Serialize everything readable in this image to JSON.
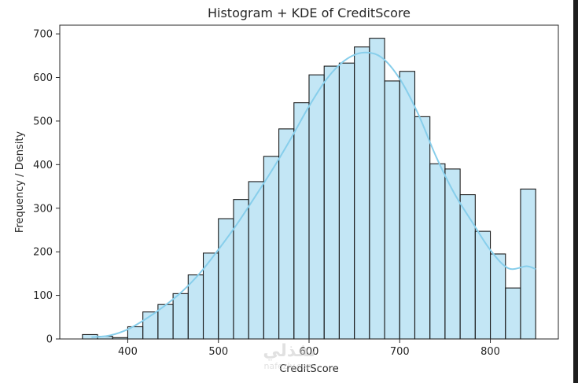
{
  "chart_data": {
    "type": "bar",
    "title": "Histogram + KDE of CreditScore",
    "xlabel": "CreditScore",
    "ylabel": "Frequency / Density",
    "xlim": [
      325,
      875
    ],
    "ylim": [
      0,
      720
    ],
    "xticks": [
      400,
      500,
      600,
      700,
      800
    ],
    "yticks": [
      0,
      100,
      200,
      300,
      400,
      500,
      600,
      700
    ],
    "bin_edges": [
      350,
      366.67,
      383.33,
      400,
      416.67,
      433.33,
      450,
      466.67,
      483.33,
      500,
      516.67,
      533.33,
      550,
      566.67,
      583.33,
      600,
      616.67,
      633.33,
      650,
      666.67,
      683.33,
      700,
      716.67,
      733.33,
      750,
      766.67,
      783.33,
      800,
      816.67,
      833.33,
      850
    ],
    "values": [
      10,
      6,
      3,
      28,
      62,
      79,
      104,
      147,
      197,
      276,
      320,
      361,
      419,
      482,
      542,
      606,
      626,
      633,
      670,
      690,
      592,
      614,
      510,
      402,
      390,
      331,
      247,
      195,
      117,
      344
    ],
    "kde": {
      "x": [
        360,
        380,
        400,
        420,
        440,
        460,
        480,
        500,
        520,
        540,
        560,
        580,
        600,
        620,
        640,
        660,
        680,
        700,
        720,
        740,
        760,
        780,
        800,
        820,
        840,
        850
      ],
      "y": [
        4,
        8,
        22,
        46,
        75,
        109,
        152,
        205,
        262,
        325,
        390,
        460,
        534,
        598,
        640,
        657,
        646,
        597,
        518,
        419,
        335,
        268,
        204,
        162,
        167,
        160
      ]
    },
    "bar_color": "#87ceeb",
    "bar_edge_color": "#1a1a1a",
    "kde_color": "#87ceeb",
    "grid": false,
    "legend": "none"
  },
  "watermark": {
    "text": "نفذلي",
    "subtext": "nafezly.com"
  }
}
